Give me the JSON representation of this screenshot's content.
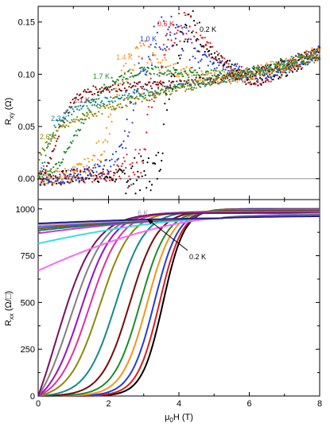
{
  "chart_data": [
    {
      "type": "scatter",
      "panel": "top",
      "ylabel_main": "R",
      "ylabel_sub": "xy",
      "ylabel_unit": "(Ω)",
      "xlim": [
        0,
        8
      ],
      "ylim": [
        -0.02,
        0.165
      ],
      "yticks": [
        0.0,
        0.05,
        0.1,
        0.15
      ],
      "ytick_labels": [
        "0.00",
        "0.05",
        "0.10",
        "0.15"
      ],
      "zero_line": true,
      "series": [
        {
          "label": "0.2 K",
          "color": "#000000",
          "x": [
            0,
            0.5,
            1,
            1.5,
            2,
            2.5,
            3,
            3.2,
            3.4,
            3.5,
            3.6,
            3.7,
            3.8,
            3.9,
            4,
            4.2,
            4.4,
            4.6,
            4.8,
            5,
            5.5,
            6,
            6.5,
            7,
            7.5,
            8
          ],
          "y": [
            0,
            0,
            0.002,
            0.004,
            0.002,
            0.003,
            0.004,
            0.006,
            0.01,
            0.03,
            0.06,
            0.09,
            0.1,
            0.11,
            0.13,
            0.15,
            0.145,
            0.135,
            0.125,
            0.115,
            0.105,
            0.095,
            0.097,
            0.104,
            0.112,
            0.12
          ]
        },
        {
          "label": "0.6 K",
          "color": "#e31a1c",
          "x": [
            0,
            0.5,
            1,
            1.5,
            2,
            2.5,
            2.8,
            3,
            3.1,
            3.2,
            3.4,
            3.6,
            3.8,
            4,
            4.2,
            4.4,
            4.6,
            4.8,
            5,
            5.5,
            6,
            6.5,
            7,
            7.5,
            8
          ],
          "y": [
            0,
            0,
            0.002,
            0.003,
            0.005,
            0.008,
            0.012,
            0.03,
            0.06,
            0.08,
            0.1,
            0.12,
            0.135,
            0.145,
            0.15,
            0.145,
            0.138,
            0.128,
            0.118,
            0.106,
            0.097,
            0.098,
            0.105,
            0.113,
            0.121
          ]
        },
        {
          "label": "1.0 K",
          "color": "#1f3fd6",
          "x": [
            0,
            0.5,
            1,
            1.5,
            2,
            2.4,
            2.6,
            2.8,
            3,
            3.2,
            3.4,
            3.6,
            3.8,
            4,
            4.2,
            4.5,
            5,
            5.5,
            6,
            6.5,
            7,
            7.5,
            8
          ],
          "y": [
            0,
            0.001,
            0.003,
            0.006,
            0.012,
            0.03,
            0.06,
            0.09,
            0.11,
            0.125,
            0.135,
            0.14,
            0.14,
            0.135,
            0.128,
            0.12,
            0.11,
            0.103,
            0.098,
            0.1,
            0.106,
            0.114,
            0.121
          ]
        },
        {
          "label": "1.4 K",
          "color": "#f7941d",
          "x": [
            0,
            0.5,
            1,
            1.5,
            1.8,
            2,
            2.2,
            2.4,
            2.6,
            2.8,
            3,
            3.2,
            3.4,
            3.6,
            4,
            4.5,
            5,
            5.5,
            6,
            6.5,
            7,
            7.5,
            8
          ],
          "y": [
            0,
            0.002,
            0.006,
            0.015,
            0.03,
            0.05,
            0.075,
            0.095,
            0.11,
            0.12,
            0.122,
            0.12,
            0.115,
            0.11,
            0.102,
            0.098,
            0.097,
            0.098,
            0.1,
            0.104,
            0.109,
            0.115,
            0.121
          ]
        },
        {
          "label": "1.7 K",
          "color": "#1f8a2e",
          "x": [
            0,
            0.3,
            0.6,
            0.9,
            1.2,
            1.5,
            1.8,
            2.1,
            2.4,
            2.7,
            3,
            3.5,
            4,
            4.5,
            5,
            5.5,
            6,
            6.5,
            7,
            7.5,
            8
          ],
          "y": [
            0,
            0.005,
            0.015,
            0.03,
            0.05,
            0.07,
            0.085,
            0.093,
            0.098,
            0.101,
            0.103,
            0.104,
            0.102,
            0.1,
            0.1,
            0.101,
            0.103,
            0.106,
            0.11,
            0.115,
            0.12
          ]
        },
        {
          "label": "2.1 K",
          "color": "#7a0a0a",
          "x": [
            0,
            0.2,
            0.4,
            0.6,
            0.8,
            1,
            1.3,
            1.6,
            2,
            2.5,
            3,
            3.5,
            4,
            4.5,
            5,
            5.5,
            6,
            6.5,
            7,
            7.5,
            8
          ],
          "y": [
            0,
            0.008,
            0.025,
            0.045,
            0.063,
            0.075,
            0.082,
            0.085,
            0.087,
            0.088,
            0.089,
            0.09,
            0.091,
            0.093,
            0.095,
            0.098,
            0.101,
            0.105,
            0.109,
            0.114,
            0.12
          ]
        },
        {
          "label": "2.3 K",
          "color": "#148a8a",
          "x": [
            0,
            0.15,
            0.3,
            0.5,
            0.7,
            1,
            1.3,
            1.6,
            2,
            2.5,
            3,
            3.5,
            4,
            4.5,
            5,
            5.5,
            6,
            6.5,
            7,
            7.5,
            8
          ],
          "y": [
            0,
            0.015,
            0.035,
            0.052,
            0.06,
            0.066,
            0.07,
            0.073,
            0.076,
            0.079,
            0.082,
            0.085,
            0.088,
            0.091,
            0.094,
            0.097,
            0.101,
            0.105,
            0.109,
            0.114,
            0.119
          ]
        },
        {
          "label": "2.6 K",
          "color": "#8a8a0a",
          "x": [
            0,
            0.2,
            0.4,
            0.6,
            1,
            1.5,
            2,
            2.5,
            3,
            3.5,
            4,
            4.5,
            5,
            5.5,
            6,
            6.5,
            7,
            7.5,
            8
          ],
          "y": [
            0.02,
            0.03,
            0.04,
            0.047,
            0.055,
            0.062,
            0.068,
            0.073,
            0.078,
            0.082,
            0.086,
            0.09,
            0.093,
            0.097,
            0.1,
            0.104,
            0.108,
            0.113,
            0.118
          ]
        }
      ]
    },
    {
      "type": "line",
      "panel": "bottom",
      "ylabel_main": "R",
      "ylabel_sub": "xx",
      "ylabel_unit": "(Ω/□)",
      "xlabel_main": "μ",
      "xlabel_sub": "0",
      "xlabel_rest": "H (T)",
      "xlim": [
        0,
        8
      ],
      "ylim": [
        0,
        1050
      ],
      "xticks": [
        0,
        2,
        4,
        6,
        8
      ],
      "xtick_labels": [
        "0",
        "2",
        "4",
        "6",
        "8"
      ],
      "yticks": [
        0,
        250,
        500,
        750,
        1000
      ],
      "ytick_labels": [
        "0",
        "250",
        "500",
        "750",
        "1000"
      ],
      "annotations": [
        {
          "text": "6 K",
          "color": "#999999"
        },
        {
          "text": "0.2 K",
          "color": "#000000"
        }
      ],
      "crossing_field": 5.2,
      "crossing_value": 950,
      "series": [
        {
          "r0": 0,
          "midpoint": 3.55,
          "width": 0.3,
          "rinf": 1000,
          "color": "#000000"
        },
        {
          "r0": 0,
          "midpoint": 3.45,
          "width": 0.32,
          "rinf": 1000,
          "color": "#e31a1c"
        },
        {
          "r0": 0,
          "midpoint": 3.3,
          "width": 0.34,
          "rinf": 998,
          "color": "#1f3fd6"
        },
        {
          "r0": 0,
          "midpoint": 3.1,
          "width": 0.36,
          "rinf": 995,
          "color": "#f7941d"
        },
        {
          "r0": 0,
          "midpoint": 2.9,
          "width": 0.38,
          "rinf": 993,
          "color": "#1f8a2e"
        },
        {
          "r0": 0,
          "midpoint": 2.6,
          "width": 0.4,
          "rinf": 990,
          "color": "#7a0a0a"
        },
        {
          "r0": 0,
          "midpoint": 2.2,
          "width": 0.42,
          "rinf": 988,
          "color": "#148a8a"
        },
        {
          "r0": 0,
          "midpoint": 1.75,
          "width": 0.44,
          "rinf": 986,
          "color": "#8a8a0a"
        },
        {
          "r0": 0,
          "midpoint": 1.45,
          "width": 0.45,
          "rinf": 984,
          "color": "#e0309a"
        },
        {
          "r0": 0,
          "midpoint": 1.2,
          "width": 0.46,
          "rinf": 982,
          "color": "#9a10c9"
        },
        {
          "r0": 0,
          "midpoint": 0.9,
          "width": 0.5,
          "rinf": 980,
          "color": "#808080"
        },
        {
          "r0": 0,
          "midpoint": 0.5,
          "width": 0.55,
          "rinf": 978,
          "color": "#7a1060"
        },
        {
          "r0": 670,
          "midpoint": 0,
          "width": 1,
          "rinf": 975,
          "color": "#ff66ff"
        },
        {
          "r0": 815,
          "midpoint": 0,
          "width": 1,
          "rinf": 972,
          "color": "#33e0e6"
        },
        {
          "r0": 870,
          "midpoint": 0,
          "width": 1,
          "rinf": 970,
          "color": "#c040c0"
        },
        {
          "r0": 885,
          "midpoint": 0,
          "width": 1,
          "rinf": 968,
          "color": "#0a7a7a"
        },
        {
          "r0": 895,
          "midpoint": 0,
          "width": 1,
          "rinf": 966,
          "color": "#7a5a10"
        },
        {
          "r0": 905,
          "midpoint": 0,
          "width": 1,
          "rinf": 964,
          "color": "#5050ff"
        },
        {
          "r0": 912,
          "midpoint": 0,
          "width": 1,
          "rinf": 963,
          "color": "#d9a0a0"
        },
        {
          "r0": 918,
          "midpoint": 0,
          "width": 1,
          "rinf": 962,
          "color": "#b0b0b0"
        },
        {
          "r0": 922,
          "midpoint": 0,
          "width": 1,
          "rinf": 961,
          "color": "#1f1f8a"
        }
      ]
    }
  ]
}
